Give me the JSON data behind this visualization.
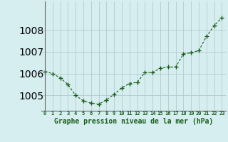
{
  "x": [
    0,
    1,
    2,
    3,
    4,
    5,
    6,
    7,
    8,
    9,
    10,
    11,
    12,
    13,
    14,
    15,
    16,
    17,
    18,
    19,
    20,
    21,
    22,
    23
  ],
  "y": [
    1006.1,
    1006.0,
    1005.8,
    1005.5,
    1005.0,
    1004.75,
    1004.65,
    1004.6,
    1004.8,
    1005.05,
    1005.35,
    1005.55,
    1005.6,
    1006.05,
    1006.05,
    1006.25,
    1006.3,
    1006.3,
    1006.9,
    1006.95,
    1007.05,
    1007.7,
    1008.2,
    1008.55
  ],
  "line_color": "#1a5c1a",
  "marker_color": "#1a5c1a",
  "bg_color": "#d6eef0",
  "grid_color": "#b0cccc",
  "xlabel": "Graphe pression niveau de la mer (hPa)",
  "xlabel_fontsize": 7,
  "tick_color": "#1a5c1a",
  "ylim_min": 1004.3,
  "ylim_max": 1009.3,
  "yticks": [
    1005,
    1006,
    1007,
    1008
  ],
  "xticks": [
    0,
    1,
    2,
    3,
    4,
    5,
    6,
    7,
    8,
    9,
    10,
    11,
    12,
    13,
    14,
    15,
    16,
    17,
    18,
    19,
    20,
    21,
    22,
    23
  ]
}
